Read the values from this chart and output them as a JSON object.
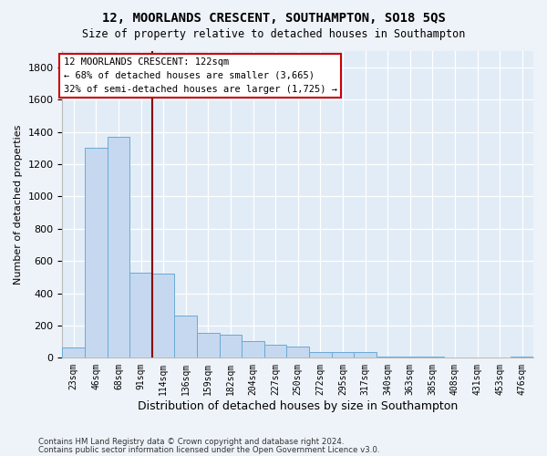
{
  "title1": "12, MOORLANDS CRESCENT, SOUTHAMPTON, SO18 5QS",
  "title2": "Size of property relative to detached houses in Southampton",
  "xlabel": "Distribution of detached houses by size in Southampton",
  "ylabel": "Number of detached properties",
  "categories": [
    "23sqm",
    "46sqm",
    "68sqm",
    "91sqm",
    "114sqm",
    "136sqm",
    "159sqm",
    "182sqm",
    "204sqm",
    "227sqm",
    "250sqm",
    "272sqm",
    "295sqm",
    "317sqm",
    "340sqm",
    "363sqm",
    "385sqm",
    "408sqm",
    "431sqm",
    "453sqm",
    "476sqm"
  ],
  "values": [
    62,
    1300,
    1370,
    530,
    520,
    265,
    155,
    145,
    105,
    82,
    72,
    38,
    38,
    35,
    10,
    10,
    10,
    0,
    0,
    0,
    8
  ],
  "bar_color": "#c5d8ef",
  "bar_edge_color": "#6aaad4",
  "vline_x": 3.5,
  "vline_color": "#8b0000",
  "annotation_line1": "12 MOORLANDS CRESCENT: 122sqm",
  "annotation_line2": "← 68% of detached houses are smaller (3,665)",
  "annotation_line3": "32% of semi-detached houses are larger (1,725) →",
  "box_color": "#cc0000",
  "ylim": [
    0,
    1900
  ],
  "yticks": [
    0,
    200,
    400,
    600,
    800,
    1000,
    1200,
    1400,
    1600,
    1800
  ],
  "footer1": "Contains HM Land Registry data © Crown copyright and database right 2024.",
  "footer2": "Contains public sector information licensed under the Open Government Licence v3.0.",
  "bg_color": "#eef3f9",
  "plot_bg": "#e2ecf6"
}
